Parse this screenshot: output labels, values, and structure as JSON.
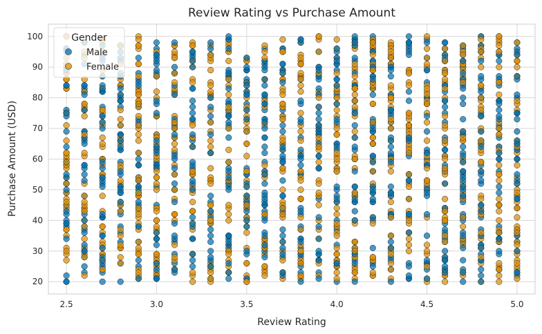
{
  "chart_data": {
    "type": "scatter",
    "title": "Review Rating vs Purchase Amount",
    "xlabel": "Review Rating",
    "ylabel": "Purchase Amount (USD)",
    "xlim": [
      2.4,
      5.1
    ],
    "ylim": [
      16,
      104
    ],
    "xticks": [
      "2.5",
      "3.0",
      "3.5",
      "4.0",
      "4.5",
      "5.0"
    ],
    "yticks": [
      "20",
      "30",
      "40",
      "50",
      "60",
      "70",
      "80",
      "90",
      "100"
    ],
    "grid": true,
    "legend": {
      "title": "Gender",
      "placement": "top-left"
    },
    "x_values": [
      2.5,
      2.6,
      2.7,
      2.8,
      2.9,
      3.0,
      3.1,
      3.2,
      3.3,
      3.4,
      3.5,
      3.6,
      3.7,
      3.8,
      3.9,
      4.0,
      4.1,
      4.2,
      4.3,
      4.4,
      4.5,
      4.6,
      4.7,
      4.8,
      4.9,
      5.0
    ],
    "y_range": [
      20,
      100
    ],
    "series": [
      {
        "name": "Male",
        "color": "#0173b2"
      },
      {
        "name": "Female",
        "color": "#de8f05"
      }
    ]
  }
}
